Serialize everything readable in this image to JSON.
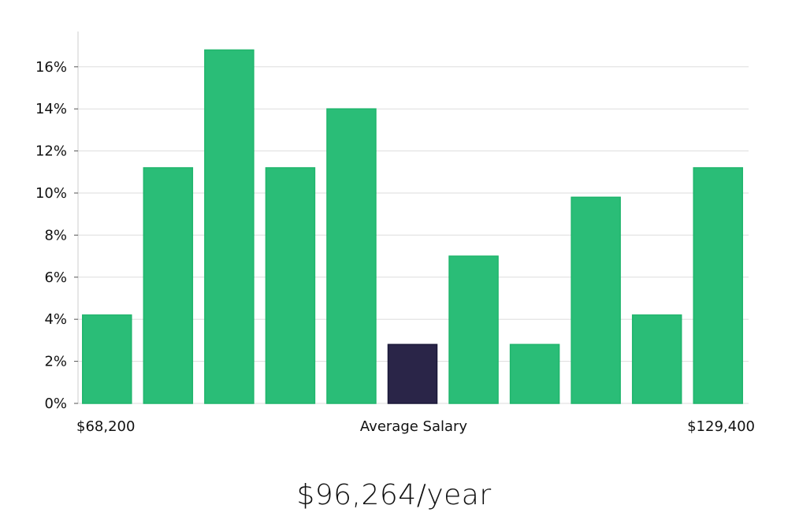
{
  "chart_data": {
    "type": "bar",
    "values": [
      4.2,
      11.2,
      16.8,
      11.2,
      14.0,
      2.8,
      7.0,
      2.8,
      9.8,
      4.2,
      11.2
    ],
    "highlight_index": 5,
    "ylim": [
      0,
      17.6
    ],
    "y_ticks": [
      0,
      2,
      4,
      6,
      8,
      10,
      12,
      14,
      16
    ],
    "y_tick_format": "%",
    "x_min_label": "$68,200",
    "x_center_label": "Average Salary",
    "x_max_label": "$129,400",
    "grid": true,
    "colors": {
      "bar": "#2abd77",
      "bar_stroke": "#1fb56c",
      "highlight": "#2a2548",
      "grid": "#dddddd",
      "axis": "#cccccc"
    }
  },
  "summary": {
    "average_salary_text": "$96,264/year"
  }
}
